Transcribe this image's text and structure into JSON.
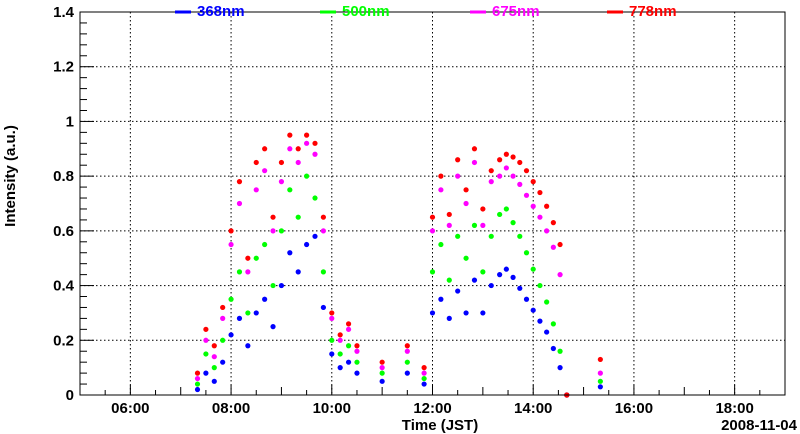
{
  "chart_data": {
    "type": "scatter",
    "title": "",
    "xlabel": "Time (JST)",
    "ylabel": "Intensity (a.u.)",
    "date_label": "2008-11-04",
    "xlim": [
      "05:00",
      "19:00"
    ],
    "ylim": [
      0,
      1.4
    ],
    "x_ticks": [
      "06:00",
      "08:00",
      "10:00",
      "12:00",
      "14:00",
      "16:00",
      "18:00"
    ],
    "y_ticks": [
      "0",
      "0.2",
      "0.4",
      "0.6",
      "0.8",
      "1",
      "1.2",
      "1.4"
    ],
    "grid": true,
    "legend_position": "top",
    "series": [
      {
        "name": "368nm",
        "color": "#0000ff",
        "clear_sky": {
          "start": "13:20",
          "end": "14:40",
          "values": [
            0.44,
            0.46,
            0.43,
            0.39,
            0.35,
            0.31,
            0.27,
            0.23,
            0.17,
            0.1,
            0.0
          ]
        },
        "points": [
          [
            "07:20",
            0.02
          ],
          [
            "07:30",
            0.08
          ],
          [
            "07:40",
            0.05
          ],
          [
            "07:50",
            0.12
          ],
          [
            "08:00",
            0.22
          ],
          [
            "08:10",
            0.28
          ],
          [
            "08:20",
            0.18
          ],
          [
            "08:30",
            0.3
          ],
          [
            "08:40",
            0.35
          ],
          [
            "08:50",
            0.25
          ],
          [
            "09:00",
            0.4
          ],
          [
            "09:10",
            0.52
          ],
          [
            "09:20",
            0.45
          ],
          [
            "09:30",
            0.55
          ],
          [
            "09:40",
            0.58
          ],
          [
            "09:50",
            0.32
          ],
          [
            "10:00",
            0.15
          ],
          [
            "10:10",
            0.1
          ],
          [
            "10:20",
            0.12
          ],
          [
            "10:30",
            0.08
          ],
          [
            "11:00",
            0.05
          ],
          [
            "11:30",
            0.08
          ],
          [
            "11:50",
            0.04
          ],
          [
            "12:00",
            0.3
          ],
          [
            "12:10",
            0.35
          ],
          [
            "12:20",
            0.28
          ],
          [
            "12:30",
            0.38
          ],
          [
            "12:40",
            0.3
          ],
          [
            "12:50",
            0.42
          ],
          [
            "13:00",
            0.3
          ],
          [
            "13:10",
            0.4
          ],
          [
            "15:20",
            0.03
          ]
        ]
      },
      {
        "name": "500nm",
        "color": "#00ff00",
        "clear_sky": {
          "start": "13:20",
          "end": "14:40",
          "values": [
            0.66,
            0.68,
            0.63,
            0.58,
            0.52,
            0.46,
            0.4,
            0.34,
            0.26,
            0.16,
            0.0
          ]
        },
        "points": [
          [
            "07:20",
            0.04
          ],
          [
            "07:30",
            0.15
          ],
          [
            "07:40",
            0.1
          ],
          [
            "07:50",
            0.2
          ],
          [
            "08:00",
            0.35
          ],
          [
            "08:10",
            0.45
          ],
          [
            "08:20",
            0.3
          ],
          [
            "08:30",
            0.5
          ],
          [
            "08:40",
            0.55
          ],
          [
            "08:50",
            0.4
          ],
          [
            "09:00",
            0.6
          ],
          [
            "09:10",
            0.75
          ],
          [
            "09:20",
            0.65
          ],
          [
            "09:30",
            0.8
          ],
          [
            "09:40",
            0.72
          ],
          [
            "09:50",
            0.45
          ],
          [
            "10:00",
            0.2
          ],
          [
            "10:10",
            0.15
          ],
          [
            "10:20",
            0.18
          ],
          [
            "10:30",
            0.12
          ],
          [
            "11:00",
            0.08
          ],
          [
            "11:30",
            0.12
          ],
          [
            "11:50",
            0.06
          ],
          [
            "12:00",
            0.45
          ],
          [
            "12:10",
            0.55
          ],
          [
            "12:20",
            0.42
          ],
          [
            "12:30",
            0.58
          ],
          [
            "12:40",
            0.5
          ],
          [
            "12:50",
            0.62
          ],
          [
            "13:00",
            0.45
          ],
          [
            "13:10",
            0.58
          ],
          [
            "15:20",
            0.05
          ]
        ]
      },
      {
        "name": "675nm",
        "color": "#ff00ff",
        "clear_sky": {
          "start": "13:20",
          "end": "14:40",
          "values": [
            0.8,
            0.83,
            0.8,
            0.77,
            0.73,
            0.69,
            0.65,
            0.6,
            0.54,
            0.44,
            0.0
          ]
        },
        "points": [
          [
            "07:20",
            0.06
          ],
          [
            "07:30",
            0.2
          ],
          [
            "07:40",
            0.14
          ],
          [
            "07:50",
            0.28
          ],
          [
            "08:00",
            0.55
          ],
          [
            "08:10",
            0.7
          ],
          [
            "08:20",
            0.45
          ],
          [
            "08:30",
            0.75
          ],
          [
            "08:40",
            0.82
          ],
          [
            "08:50",
            0.6
          ],
          [
            "09:00",
            0.78
          ],
          [
            "09:10",
            0.9
          ],
          [
            "09:20",
            0.85
          ],
          [
            "09:30",
            0.92
          ],
          [
            "09:40",
            0.88
          ],
          [
            "09:50",
            0.6
          ],
          [
            "10:00",
            0.28
          ],
          [
            "10:10",
            0.2
          ],
          [
            "10:20",
            0.24
          ],
          [
            "10:30",
            0.16
          ],
          [
            "11:00",
            0.1
          ],
          [
            "11:30",
            0.16
          ],
          [
            "11:50",
            0.08
          ],
          [
            "12:00",
            0.6
          ],
          [
            "12:10",
            0.75
          ],
          [
            "12:20",
            0.62
          ],
          [
            "12:30",
            0.8
          ],
          [
            "12:40",
            0.7
          ],
          [
            "12:50",
            0.85
          ],
          [
            "13:00",
            0.62
          ],
          [
            "13:10",
            0.78
          ],
          [
            "15:20",
            0.08
          ]
        ]
      },
      {
        "name": "778nm",
        "color": "#ff0000",
        "clear_sky": {
          "start": "13:20",
          "end": "14:40",
          "values": [
            0.86,
            0.88,
            0.87,
            0.85,
            0.82,
            0.78,
            0.74,
            0.69,
            0.63,
            0.55,
            0.0
          ]
        },
        "points": [
          [
            "07:20",
            0.08
          ],
          [
            "07:30",
            0.24
          ],
          [
            "07:40",
            0.18
          ],
          [
            "07:50",
            0.32
          ],
          [
            "08:00",
            0.6
          ],
          [
            "08:10",
            0.78
          ],
          [
            "08:20",
            0.5
          ],
          [
            "08:30",
            0.85
          ],
          [
            "08:40",
            0.9
          ],
          [
            "08:50",
            0.65
          ],
          [
            "09:00",
            0.85
          ],
          [
            "09:10",
            0.95
          ],
          [
            "09:20",
            0.9
          ],
          [
            "09:30",
            0.95
          ],
          [
            "09:40",
            0.92
          ],
          [
            "09:50",
            0.65
          ],
          [
            "10:00",
            0.3
          ],
          [
            "10:10",
            0.22
          ],
          [
            "10:20",
            0.26
          ],
          [
            "10:30",
            0.18
          ],
          [
            "11:00",
            0.12
          ],
          [
            "11:30",
            0.18
          ],
          [
            "11:50",
            0.1
          ],
          [
            "12:00",
            0.65
          ],
          [
            "12:10",
            0.8
          ],
          [
            "12:20",
            0.66
          ],
          [
            "12:30",
            0.86
          ],
          [
            "12:40",
            0.75
          ],
          [
            "12:50",
            0.9
          ],
          [
            "13:00",
            0.68
          ],
          [
            "13:10",
            0.82
          ],
          [
            "15:20",
            0.13
          ]
        ]
      }
    ]
  }
}
